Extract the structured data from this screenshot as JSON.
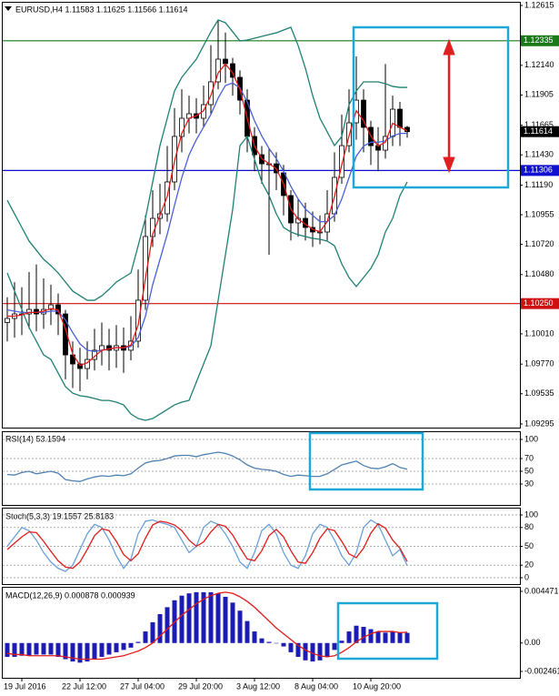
{
  "chart_data": [
    {
      "type": "candlestick",
      "title": "EURUSD,H4 1.11583 1.11625 1.11566 1.11614",
      "categories": [
        null,
        null,
        "19 Jul 2016",
        null,
        null,
        null,
        null,
        null,
        null,
        null,
        "22 Jul 12:00",
        null,
        null,
        null,
        null,
        null,
        null,
        null,
        "27 Jul 04:00",
        null,
        null,
        null,
        null,
        null,
        null,
        null,
        "29 Jul 20:00",
        null,
        null,
        null,
        null,
        null,
        null,
        null,
        "3 Aug 12:00",
        null,
        null,
        null,
        null,
        null,
        null,
        null,
        "8 Aug 04:00",
        null,
        null,
        null,
        null,
        null,
        null,
        null,
        "10 Aug 20:00",
        null,
        null,
        null,
        null,
        null
      ],
      "open": [
        1.101,
        1.10132,
        1.10168,
        1.10168,
        1.10204,
        1.10168,
        1.10204,
        1.1024,
        1.10168,
        1.09843,
        1.09771,
        1.09735,
        1.09807,
        1.0988,
        1.09916,
        1.0988,
        1.09916,
        1.0988,
        1.09952,
        1.10277,
        1.10782,
        1.10926,
        1.10962,
        1.11215,
        1.11576,
        1.1172,
        1.11756,
        1.1172,
        1.11828,
        1.12009,
        1.12189,
        1.12153,
        1.12045,
        1.11864,
        1.11576,
        1.11431,
        1.11359,
        1.11359,
        1.11287,
        1.11107,
        1.1089,
        1.10926,
        1.10854,
        1.10818,
        1.10818,
        1.10962,
        1.11251,
        1.11503,
        1.11684,
        1.11864,
        1.11648,
        1.11503,
        1.11467,
        1.11576,
        1.11792,
        1.11648
      ],
      "high": [
        1.103,
        1.1042,
        1.1038,
        1.105,
        1.1056,
        1.1045,
        1.104,
        1.1033,
        1.102,
        1.0995,
        1.099,
        1.0995,
        1.1005,
        1.101,
        1.1005,
        1.1008,
        1.1006,
        1.1015,
        1.1052,
        1.1095,
        1.1115,
        1.112,
        1.115,
        1.118,
        1.1195,
        1.119,
        1.1188,
        1.1198,
        1.123,
        1.125,
        1.124,
        1.122,
        1.121,
        1.1195,
        1.1165,
        1.115,
        1.1148,
        1.1145,
        1.1135,
        1.1115,
        1.1108,
        1.1105,
        1.1098,
        1.1095,
        1.1115,
        1.1145,
        1.1175,
        1.1195,
        1.12211,
        1.1195,
        1.117,
        1.1165,
        1.1215,
        1.119,
        1.1185,
        1.1166
      ],
      "low": [
        1.0995,
        1.0998,
        1.1,
        1.1005,
        1.1003,
        1.1005,
        1.1008,
        1.1,
        1.0965,
        1.0958,
        1.09555,
        1.0965,
        1.0972,
        1.0976,
        1.0972,
        1.0974,
        1.097,
        1.098,
        1.099,
        1.102,
        1.107,
        1.108,
        1.109,
        1.1115,
        1.1145,
        1.116,
        1.116,
        1.1165,
        1.1175,
        1.1195,
        1.12,
        1.119,
        1.1175,
        1.1145,
        1.113,
        1.112,
        1.10637,
        1.1115,
        1.1095,
        1.1075,
        1.1078,
        1.1075,
        1.107,
        1.1072,
        1.1075,
        1.109,
        1.112,
        1.1145,
        1.1155,
        1.1145,
        1.1135,
        1.113,
        1.114,
        1.115,
        1.115,
        1.11566
      ],
      "close": [
        1.10132,
        1.10168,
        1.10168,
        1.10204,
        1.10168,
        1.10204,
        1.1024,
        1.10168,
        1.09843,
        1.09771,
        1.09735,
        1.09807,
        1.0988,
        1.09916,
        1.0988,
        1.09916,
        1.0988,
        1.09952,
        1.10277,
        1.10782,
        1.10926,
        1.10962,
        1.11215,
        1.11576,
        1.1172,
        1.11756,
        1.1172,
        1.11828,
        1.12009,
        1.12189,
        1.12153,
        1.12045,
        1.11864,
        1.11576,
        1.11431,
        1.11359,
        1.11359,
        1.11287,
        1.11107,
        1.1089,
        1.10926,
        1.10854,
        1.10818,
        1.10818,
        1.10962,
        1.11251,
        1.11503,
        1.11684,
        1.11864,
        1.11648,
        1.11503,
        1.11467,
        1.11576,
        1.11792,
        1.11648,
        1.11614
      ],
      "series": [
        {
          "color": "#1f7f72",
          "values": [
            1.1107,
            1.10962,
            1.10854,
            1.10746,
            1.10673,
            1.10601,
            1.10551,
            1.10493,
            1.10421,
            1.10349,
            1.10312,
            1.10276,
            1.10276,
            1.10312,
            1.10363,
            1.10421,
            1.10457,
            1.10493,
            1.10709,
            1.10926,
            1.11215,
            1.11503,
            1.1172,
            1.11937,
            1.12045,
            1.12117,
            1.12189,
            1.12297,
            1.12406,
            1.125,
            1.12478,
            1.12406,
            1.12333,
            1.12341,
            1.12355,
            1.1237,
            1.12384,
            1.12398,
            1.1242,
            1.12442,
            1.12297,
            1.12117,
            1.119,
            1.1172,
            1.11612,
            1.11503,
            1.11576,
            1.11828,
            1.11937,
            1.12009,
            1.12009,
            1.12009,
            1.11994,
            1.11973,
            1.11965,
            1.11965
          ]
        },
        {
          "color": "#1f7f72",
          "values": [
            1.10493,
            1.10349,
            1.10204,
            1.1006,
            1.09952,
            1.09843,
            1.09807,
            1.09699,
            1.09591,
            1.0954,
            1.09519,
            1.09511,
            1.09497,
            1.09482,
            1.09482,
            1.09468,
            1.09446,
            1.09374,
            1.09338,
            1.09324,
            1.09338,
            1.09374,
            1.0941,
            1.09446,
            1.09468,
            1.09482,
            1.09627,
            1.09771,
            1.09915,
            1.10276,
            1.10637,
            1.10998,
            1.11503,
            1.11576,
            1.11395,
            1.11215,
            1.11106,
            1.10962,
            1.10854,
            1.10818,
            1.10796,
            1.10782,
            1.10767,
            1.1076,
            1.10746,
            1.10709,
            1.10565,
            1.10457,
            1.10385,
            1.10457,
            1.10529,
            1.10637,
            1.10818,
            1.10926,
            1.11106,
            1.11215
          ]
        },
        {
          "color": "#4a5fd8",
          "values": [
            1.102,
            1.1019,
            1.1018,
            1.1018,
            1.1018,
            1.1018,
            1.1019,
            1.1019,
            1.1012,
            1.1002,
            1.0993,
            1.0988,
            1.0987,
            1.0988,
            1.0989,
            1.099,
            1.099,
            1.0991,
            1.0998,
            1.1015,
            1.104,
            1.106,
            1.108,
            1.1103,
            1.1125,
            1.1143,
            1.1155,
            1.1165,
            1.1175,
            1.1188,
            1.1198,
            1.12,
            1.1196,
            1.1185,
            1.117,
            1.1158,
            1.1148,
            1.114,
            1.113,
            1.1118,
            1.1108,
            1.11,
            1.1095,
            1.109,
            1.109,
            1.1095,
            1.1108,
            1.1125,
            1.1142,
            1.115,
            1.1153,
            1.1153,
            1.1154,
            1.1158,
            1.116,
            1.116
          ]
        },
        {
          "color": "#e01a1a",
          "values": [
            1.1015,
            1.1015,
            1.1016,
            1.1018,
            1.1018,
            1.1019,
            1.1021,
            1.102,
            1.1005,
            1.0985,
            1.0976,
            1.0978,
            1.0983,
            1.0988,
            1.0989,
            1.099,
            1.099,
            1.0992,
            1.1008,
            1.1045,
            1.108,
            1.1095,
            1.111,
            1.1138,
            1.116,
            1.1172,
            1.1174,
            1.1178,
            1.119,
            1.1208,
            1.1215,
            1.1208,
            1.1195,
            1.1172,
            1.115,
            1.114,
            1.1136,
            1.1132,
            1.112,
            1.11,
            1.1092,
            1.1088,
            1.1084,
            1.1082,
            1.109,
            1.111,
            1.1135,
            1.1158,
            1.1178,
            1.117,
            1.1158,
            1.115,
            1.1153,
            1.1168,
            1.1165,
            1.1162
          ]
        }
      ],
      "levels": [
        {
          "value": 1.12335,
          "color": "#1a7a1a"
        },
        {
          "value": 1.11306,
          "color": "#1010d0"
        },
        {
          "value": 1.1025,
          "label": "1.10250",
          "color": "#d01010"
        }
      ],
      "last": 1.11614,
      "ylim": [
        1.09295,
        1.12615
      ],
      "yticks": [
        1.12615,
        {
          "value": 1.1214,
          "label": "1.12140"
        },
        1.11905,
        1.11665,
        {
          "value": 1.1143,
          "label": "1.11430"
        },
        {
          "value": 1.1119,
          "label": "1.11190"
        },
        1.10955,
        {
          "value": 1.1072,
          "label": "1.10720"
        },
        {
          "value": 1.1048,
          "label": "1.10480"
        },
        {
          "value": 1.1001,
          "label": "1.10010"
        },
        {
          "value": 1.0977,
          "label": "1.09770"
        },
        1.09535,
        1.09295
      ]
    },
    {
      "type": "line",
      "title": "RSI(14) 53.1594",
      "series": [
        {
          "color": "#4f80b0",
          "values": [
            45,
            44,
            48,
            50,
            46,
            48,
            50,
            47,
            37,
            35,
            34,
            38,
            41,
            43,
            42,
            44,
            43,
            46,
            55,
            63,
            66,
            67,
            70,
            74,
            75,
            75,
            73,
            76,
            78,
            80,
            78,
            74,
            68,
            60,
            55,
            53,
            52,
            50,
            45,
            42,
            44,
            43,
            42,
            42,
            46,
            53,
            60,
            63,
            66,
            59,
            55,
            54,
            57,
            62,
            56,
            53.1594
          ]
        }
      ],
      "ylim": [
        0,
        100
      ],
      "yticks": [
        30,
        50,
        70,
        100
      ],
      "grid": true
    },
    {
      "type": "line",
      "title": "Stoch(5,3,3) 19.1557 25.8183",
      "series": [
        {
          "color": "#6a9fd8",
          "values": [
            50,
            65,
            80,
            75,
            60,
            40,
            25,
            15,
            10,
            20,
            45,
            70,
            85,
            80,
            60,
            35,
            15,
            30,
            70,
            90,
            92,
            88,
            85,
            80,
            60,
            40,
            50,
            80,
            90,
            85,
            70,
            50,
            25,
            15,
            40,
            75,
            85,
            70,
            40,
            20,
            15,
            35,
            70,
            85,
            80,
            60,
            35,
            20,
            40,
            80,
            92,
            85,
            60,
            35,
            45,
            19.1557
          ]
        },
        {
          "color": "#e01a1a",
          "values": [
            45,
            55,
            65,
            73,
            72,
            58,
            42,
            27,
            17,
            15,
            25,
            45,
            67,
            78,
            75,
            58,
            37,
            27,
            38,
            63,
            84,
            90,
            88,
            84,
            75,
            60,
            50,
            57,
            73,
            85,
            82,
            68,
            48,
            30,
            27,
            43,
            67,
            77,
            65,
            43,
            25,
            23,
            40,
            63,
            78,
            75,
            58,
            38,
            32,
            47,
            71,
            86,
            79,
            60,
            47,
            25.8183
          ]
        }
      ],
      "ylim": [
        0,
        100
      ],
      "yticks": [
        0,
        20,
        50,
        80,
        100
      ],
      "grid": true
    },
    {
      "type": "bar",
      "title": "MACD(12,26,9) 0.000878 0.000939",
      "color": "#1c1cb4",
      "values": [
        -0.0012,
        -0.0012,
        -0.0011,
        -0.0011,
        -0.001,
        -0.001,
        -0.001,
        -0.0012,
        -0.0014,
        -0.0016,
        -0.0017,
        -0.0016,
        -0.0014,
        -0.0012,
        -0.001,
        -0.0008,
        -0.0006,
        -0.0004,
        0.0001,
        0.001,
        0.0018,
        0.0025,
        0.0031,
        0.0037,
        0.0041,
        0.0043,
        0.0044,
        0.0044,
        0.0044,
        0.0043,
        0.004,
        0.0035,
        0.0028,
        0.0019,
        0.001,
        0.0004,
        0.0001,
        0.0,
        -0.0003,
        -0.0008,
        -0.0012,
        -0.0015,
        -0.0016,
        -0.0015,
        -0.0012,
        -0.0006,
        0.0002,
        0.001,
        0.0015,
        0.0014,
        0.0012,
        0.001,
        0.0009,
        0.001,
        0.0009,
        0.000878
      ],
      "series": [
        {
          "color": "#e01a1a",
          "values": [
            -0.0009,
            -0.001,
            -0.001,
            -0.0011,
            -0.0011,
            -0.0011,
            -0.0011,
            -0.0011,
            -0.0012,
            -0.0013,
            -0.0014,
            -0.0014,
            -0.0014,
            -0.0014,
            -0.0013,
            -0.0012,
            -0.0011,
            -0.0009,
            -0.0007,
            -0.0004,
            0.0,
            0.0006,
            0.0012,
            0.0018,
            0.0024,
            0.0029,
            0.0034,
            0.0038,
            0.0041,
            0.0043,
            0.0044,
            0.0043,
            0.004,
            0.0036,
            0.0031,
            0.0025,
            0.0019,
            0.0013,
            0.0008,
            0.0003,
            -0.0002,
            -0.0006,
            -0.0009,
            -0.0011,
            -0.0012,
            -0.0011,
            -0.0008,
            -0.0004,
            0.0001,
            0.0005,
            0.0008,
            0.001,
            0.001,
            0.001,
            0.0009,
            0.000939
          ]
        }
      ],
      "ylim": [
        -0.002461,
        0.004471
      ],
      "yticks": [
        -0.002461,
        {
          "value": 0,
          "label": "0.00"
        },
        0.004471
      ]
    }
  ]
}
